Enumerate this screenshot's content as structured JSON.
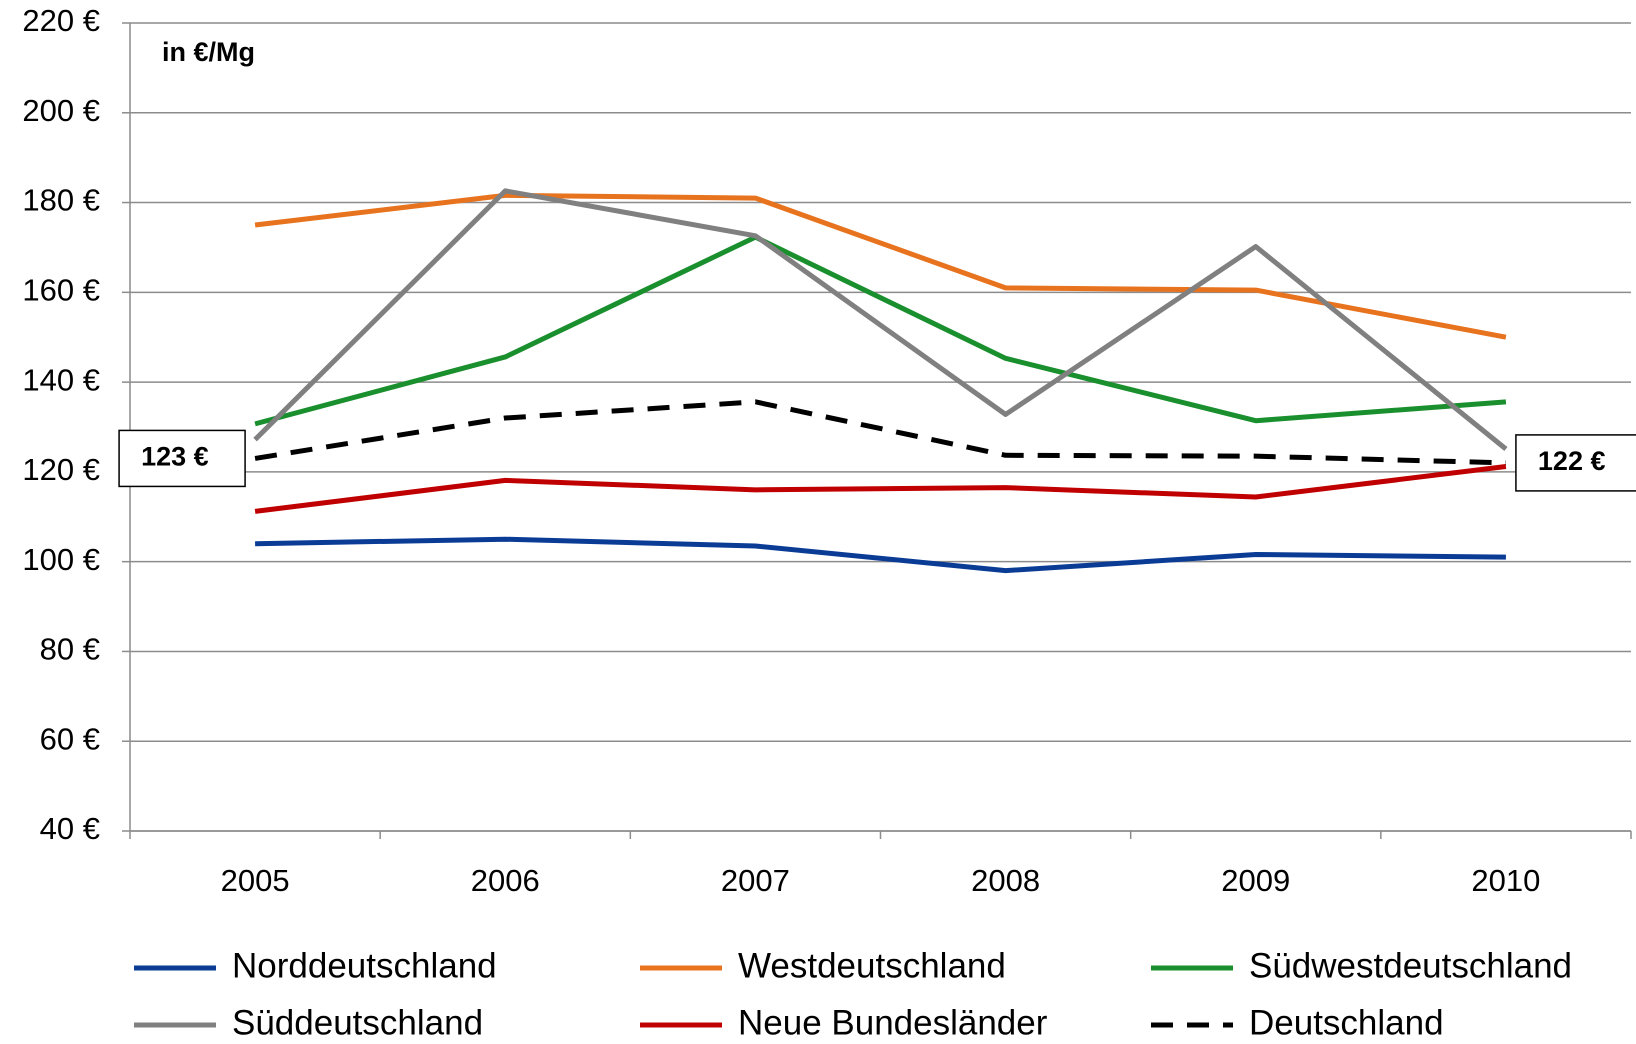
{
  "chart_data": {
    "type": "line",
    "annotation": "in €/Mg",
    "categories": [
      "2005",
      "2006",
      "2007",
      "2008",
      "2009",
      "2010"
    ],
    "series": [
      {
        "name": "Norddeutschland",
        "color": "#0a3c96",
        "values": [
          104,
          105,
          103.5,
          98,
          101.6,
          101
        ]
      },
      {
        "name": "Westdeutschland",
        "color": "#e8731e",
        "values": [
          175,
          181.6,
          181,
          161,
          160.5,
          150
        ]
      },
      {
        "name": "Südwestdeutschland",
        "color": "#1a8f2e",
        "values": [
          130.7,
          145.6,
          172.3,
          145.3,
          131.4,
          135.6
        ]
      },
      {
        "name": "Süddeutschland",
        "color": "#808080",
        "values": [
          127.2,
          182.6,
          172.6,
          132.8,
          170.2,
          125.1
        ]
      },
      {
        "name": "Neue Bundesländer",
        "color": "#c00000",
        "values": [
          111.2,
          118.1,
          116,
          116.5,
          114.4,
          121.2
        ]
      },
      {
        "name": "Deutschland",
        "color": "#000000",
        "dashed": true,
        "values": [
          123,
          132,
          135.6,
          123.7,
          123.5,
          122
        ],
        "value_labels": [
          "123 €",
          null,
          null,
          null,
          null,
          "122 €"
        ]
      }
    ],
    "ylim": [
      40,
      220
    ],
    "yticks": [
      {
        "value": 40,
        "label": "40 €"
      },
      {
        "value": 60,
        "label": "60 €"
      },
      {
        "value": 80,
        "label": "80 €"
      },
      {
        "value": 100,
        "label": "100 €"
      },
      {
        "value": 120,
        "label": "120 €"
      },
      {
        "value": 140,
        "label": "140 €"
      },
      {
        "value": 160,
        "label": "160 €"
      },
      {
        "value": 180,
        "label": "180 €"
      },
      {
        "value": 200,
        "label": "200 €"
      },
      {
        "value": 220,
        "label": "220 €"
      }
    ],
    "grid": true
  }
}
